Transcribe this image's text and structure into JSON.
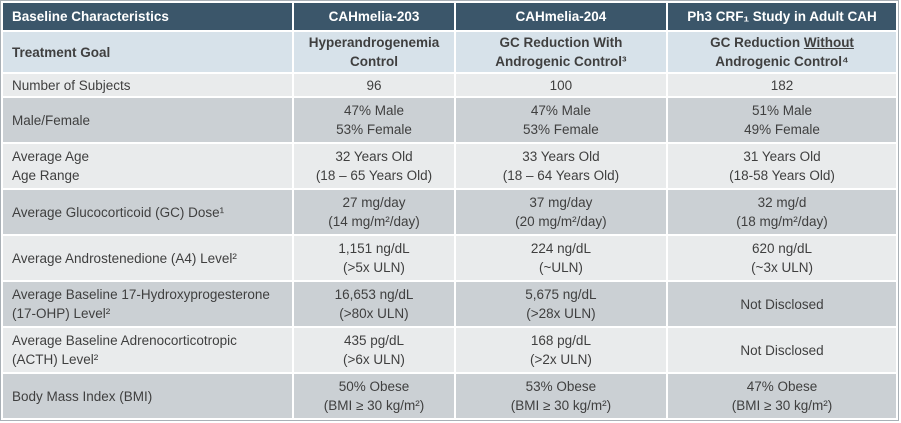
{
  "table": {
    "header": {
      "col0": "Baseline Characteristics",
      "col1": "CAHmelia-203",
      "col2": "CAHmelia-204",
      "col3": "Ph3 CRF₁ Study in Adult CAH"
    },
    "treatment_goal": {
      "label": "Treatment Goal",
      "col1": [
        "Hyperandrogenemia",
        "Control"
      ],
      "col2": [
        "GC Reduction With",
        "Androgenic Control³"
      ],
      "col3": {
        "prefix": "GC Reduction ",
        "underlined": "Without",
        "line2": "Androgenic Control⁴"
      }
    },
    "rows": [
      {
        "label": [
          "Number of Subjects"
        ],
        "c1": [
          "96"
        ],
        "c2": [
          "100"
        ],
        "c3": [
          "182"
        ]
      },
      {
        "label": [
          "Male/Female"
        ],
        "c1": [
          "47% Male",
          "53% Female"
        ],
        "c2": [
          "47% Male",
          "53% Female"
        ],
        "c3": [
          "51% Male",
          "49% Female"
        ]
      },
      {
        "label": [
          "Average Age",
          "Age Range"
        ],
        "c1": [
          "32 Years Old",
          "(18 – 65 Years Old)"
        ],
        "c2": [
          "33 Years Old",
          "(18 – 64 Years Old)"
        ],
        "c3": [
          "31 Years Old",
          "(18-58 Years Old)"
        ]
      },
      {
        "label": [
          "Average Glucocorticoid (GC) Dose¹"
        ],
        "c1": [
          "27 mg/day",
          "(14 mg/m²/day)"
        ],
        "c2": [
          "37 mg/day",
          "(20 mg/m²/day)"
        ],
        "c3": [
          "32 mg/d",
          "(18 mg/m²/day)"
        ]
      },
      {
        "label": [
          "Average Androstenedione (A4) Level²"
        ],
        "c1": [
          "1,151 ng/dL",
          "(>5x ULN)"
        ],
        "c2": [
          "224 ng/dL",
          "(~ULN)"
        ],
        "c3": [
          "620 ng/dL",
          "(~3x ULN)"
        ]
      },
      {
        "label": [
          "Average Baseline 17-Hydroxyprogesterone",
          "(17-OHP) Level²"
        ],
        "c1": [
          "16,653 ng/dL",
          "(>80x ULN)"
        ],
        "c2": [
          "5,675 ng/dL",
          "(>28x ULN)"
        ],
        "c3": [
          "Not Disclosed"
        ]
      },
      {
        "label": [
          "Average Baseline Adrenocorticotropic",
          "(ACTH) Level²"
        ],
        "c1": [
          "435 pg/dL",
          "(>6x ULN)"
        ],
        "c2": [
          "168 pg/dL",
          "(>2x ULN)"
        ],
        "c3": [
          "Not Disclosed"
        ]
      },
      {
        "label": [
          "Body Mass Index (BMI)"
        ],
        "c1": [
          "50% Obese",
          "(BMI ≥ 30 kg/m²)"
        ],
        "c2": [
          "53% Obese",
          "(BMI ≥ 30 kg/m²)"
        ],
        "c3": [
          "47% Obese",
          "(BMI ≥ 30 kg/m²)"
        ]
      }
    ],
    "colors": {
      "header_bg": "#3b566a",
      "header_text": "#ffffff",
      "goal_row_bg": "#d7e2ea",
      "row_light_bg": "#e9ebec",
      "row_dark_bg": "#cbd0d4",
      "body_text": "#3f3f3f"
    }
  }
}
